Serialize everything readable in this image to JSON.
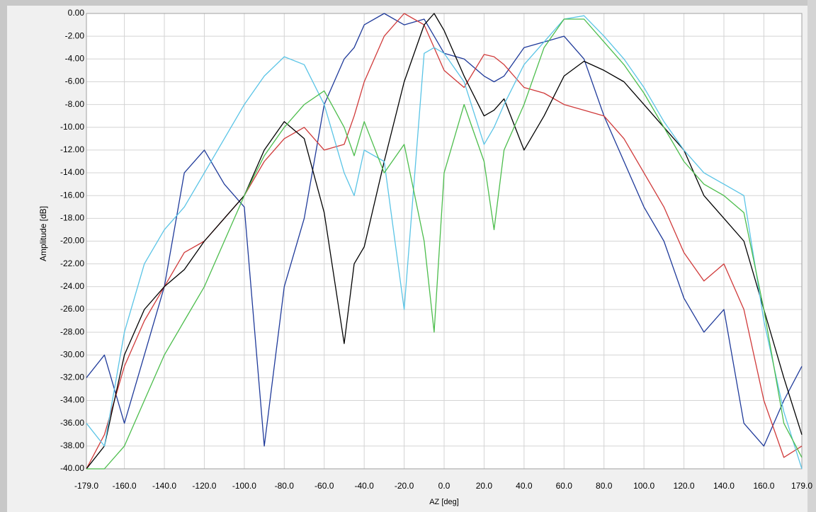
{
  "chart_data": {
    "type": "line",
    "ylabel": "Amplitude [dB]",
    "xlabel": "AZ  [deg]",
    "grid": true,
    "x": [
      -179,
      -170,
      -160,
      -150,
      -140,
      -130,
      -120,
      -110,
      -100,
      -90,
      -80,
      -70,
      -60,
      -50,
      -45,
      -40,
      -30,
      -20,
      -10,
      -5,
      0,
      10,
      20,
      25,
      30,
      40,
      50,
      60,
      70,
      80,
      90,
      100,
      110,
      120,
      130,
      140,
      150,
      160,
      170,
      179
    ],
    "series": [
      {
        "color": "#1f3a9a",
        "values": [
          -32,
          -30,
          -36,
          -30,
          -24,
          -14,
          -12,
          -15,
          -17,
          -38,
          -24,
          -18,
          -8,
          -4,
          -3,
          -1,
          0,
          -1,
          -0.5,
          -2,
          -3.5,
          -4,
          -5.5,
          -6,
          -5.5,
          -3,
          -2.5,
          -2,
          -4,
          -9,
          -13,
          -17,
          -20,
          -25,
          -28,
          -26,
          -36,
          -38,
          -34,
          -31
        ]
      },
      {
        "color": "#d03a3a",
        "values": [
          -40,
          -37,
          -31,
          -27,
          -24,
          -21,
          -20,
          -18,
          -16,
          -13,
          -11,
          -10,
          -12,
          -11.5,
          -9,
          -6,
          -2,
          0,
          -1,
          -3,
          -5,
          -6.5,
          -3.6,
          -3.8,
          -4.5,
          -6.5,
          -7,
          -8,
          -8.5,
          -9,
          -11,
          -14,
          -17,
          -21,
          -23.5,
          -22,
          -26,
          -34,
          -39,
          -38
        ]
      },
      {
        "color": "#000000",
        "values": [
          -40,
          -38,
          -30,
          -26,
          -24,
          -22.5,
          -20,
          -18,
          -16,
          -12,
          -9.5,
          -11,
          -17.5,
          -29,
          -22,
          -20.5,
          -13,
          -6,
          -1,
          0,
          -1.5,
          -5.5,
          -9,
          -8.5,
          -7.5,
          -12,
          -9,
          -5.5,
          -4.2,
          -5,
          -6,
          -8,
          -10,
          -12,
          -16,
          -18,
          -20,
          -26,
          -32,
          -37
        ]
      },
      {
        "color": "#5ac4e6",
        "values": [
          -36,
          -38,
          -28,
          -22,
          -19,
          -17,
          -14,
          -11,
          -8,
          -5.5,
          -3.8,
          -4.5,
          -8,
          -14,
          -16,
          -12,
          -13,
          -26,
          -3.5,
          -3,
          -3.5,
          -6,
          -11.5,
          -10,
          -8,
          -4.5,
          -2.5,
          -0.5,
          -0.2,
          -2,
          -4,
          -6.5,
          -9.5,
          -12,
          -14,
          -15,
          -16,
          -27,
          -35,
          -40
        ]
      },
      {
        "color": "#4cbd4c",
        "values": [
          -40,
          -40,
          -38,
          -34,
          -30,
          -27,
          -24,
          -20,
          -16,
          -12.5,
          -10,
          -8,
          -6.8,
          -10,
          -12.5,
          -9.5,
          -14,
          -11.5,
          -20,
          -28,
          -14,
          -8,
          -13,
          -19,
          -12,
          -8,
          -3,
          -0.5,
          -0.5,
          -2.5,
          -4.5,
          -7,
          -10,
          -13,
          -15,
          -16,
          -17.5,
          -26,
          -36,
          -39
        ]
      }
    ],
    "xlim": [
      -179,
      179
    ],
    "ylim": [
      -40,
      0
    ],
    "xticks": [
      {
        "value": -179,
        "label": "-179.0"
      },
      {
        "value": -160,
        "label": "-160.0"
      },
      {
        "value": -140,
        "label": "-140.0"
      },
      {
        "value": -120,
        "label": "-120.0"
      },
      {
        "value": -100,
        "label": "-100.0"
      },
      {
        "value": -80,
        "label": "-80.0"
      },
      {
        "value": -60,
        "label": "-60.0"
      },
      {
        "value": -40,
        "label": "-40.0"
      },
      {
        "value": -20,
        "label": "-20.0"
      },
      {
        "value": 0,
        "label": "0.0"
      },
      {
        "value": 20,
        "label": "20.0"
      },
      {
        "value": 40,
        "label": "40.0"
      },
      {
        "value": 60,
        "label": "60.0"
      },
      {
        "value": 80,
        "label": "80.0"
      },
      {
        "value": 100,
        "label": "100.0"
      },
      {
        "value": 120,
        "label": "120.0"
      },
      {
        "value": 140,
        "label": "140.0"
      },
      {
        "value": 160,
        "label": "160.0"
      },
      {
        "value": 179,
        "label": "179.0"
      }
    ],
    "yticks": [
      {
        "value": 0,
        "label": "0.00"
      },
      {
        "value": -2,
        "label": "-2.00"
      },
      {
        "value": -4,
        "label": "-4.00"
      },
      {
        "value": -6,
        "label": "-6.00"
      },
      {
        "value": -8,
        "label": "-8.00"
      },
      {
        "value": -10,
        "label": "-10.00"
      },
      {
        "value": -12,
        "label": "-12.00"
      },
      {
        "value": -14,
        "label": "-14.00"
      },
      {
        "value": -16,
        "label": "-16.00"
      },
      {
        "value": -18,
        "label": "-18.00"
      },
      {
        "value": -20,
        "label": "-20.00"
      },
      {
        "value": -22,
        "label": "-22.00"
      },
      {
        "value": -24,
        "label": "-24.00"
      },
      {
        "value": -26,
        "label": "-26.00"
      },
      {
        "value": -28,
        "label": "-28.00"
      },
      {
        "value": -30,
        "label": "-30.00"
      },
      {
        "value": -32,
        "label": "-32.00"
      },
      {
        "value": -34,
        "label": "-34.00"
      },
      {
        "value": -36,
        "label": "-36.00"
      },
      {
        "value": -38,
        "label": "-38.00"
      },
      {
        "value": -40,
        "label": "-40.00"
      }
    ]
  }
}
